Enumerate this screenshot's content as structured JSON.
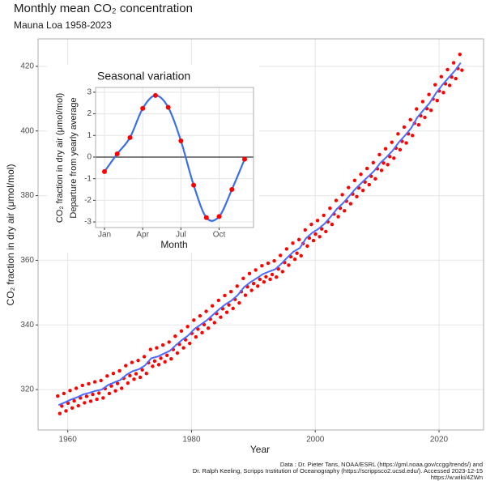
{
  "chart_data": [
    {
      "type": "scatter",
      "title": "Monthly mean CO₂ concentration",
      "subtitle": "Mauna Loa 1958-2023",
      "x_label": "Year",
      "y_label": "CO₂ fraction in dry air (μmol/mol)",
      "xlim": [
        1955.2,
        2027.2
      ],
      "ylim": [
        307.5,
        428.5
      ],
      "xticks": [
        1960,
        1980,
        2000,
        2020
      ],
      "yticks": [
        320,
        340,
        360,
        380,
        400,
        420
      ],
      "grid": true,
      "series": [
        {
          "style": "points",
          "color": "#ff0000",
          "x": [
            1958.37,
            1958.71,
            1959.04,
            1959.37,
            1959.71,
            1960.04,
            1960.37,
            1960.71,
            1961.04,
            1961.37,
            1961.71,
            1962.04,
            1962.37,
            1962.71,
            1963.04,
            1963.37,
            1963.71,
            1964.04,
            1964.37,
            1964.71,
            1965.04,
            1965.37,
            1965.71,
            1966.04,
            1966.37,
            1966.71,
            1967.04,
            1967.37,
            1967.71,
            1968.04,
            1968.37,
            1968.71,
            1969.04,
            1969.37,
            1969.71,
            1970.04,
            1970.37,
            1970.71,
            1971.04,
            1971.37,
            1971.71,
            1972.04,
            1972.37,
            1972.71,
            1973.04,
            1973.37,
            1973.71,
            1974.04,
            1974.37,
            1974.71,
            1975.04,
            1975.37,
            1975.71,
            1976.04,
            1976.37,
            1976.71,
            1977.04,
            1977.37,
            1977.71,
            1978.04,
            1978.37,
            1978.71,
            1979.04,
            1979.37,
            1979.71,
            1980.04,
            1980.37,
            1980.71,
            1981.04,
            1981.37,
            1981.71,
            1982.04,
            1982.37,
            1982.71,
            1983.04,
            1983.37,
            1983.71,
            1984.04,
            1984.37,
            1984.71,
            1985.04,
            1985.37,
            1985.71,
            1986.04,
            1986.37,
            1986.71,
            1987.04,
            1987.37,
            1987.71,
            1988.04,
            1988.37,
            1988.71,
            1989.04,
            1989.37,
            1989.71,
            1990.04,
            1990.37,
            1990.71,
            1991.04,
            1991.37,
            1991.71,
            1992.04,
            1992.37,
            1992.71,
            1993.04,
            1993.37,
            1993.71,
            1994.04,
            1994.37,
            1994.71,
            1995.04,
            1995.37,
            1995.71,
            1996.04,
            1996.37,
            1996.71,
            1997.04,
            1997.37,
            1997.71,
            1998.04,
            1998.37,
            1998.71,
            1999.04,
            1999.37,
            1999.71,
            2000.04,
            2000.37,
            2000.71,
            2001.04,
            2001.37,
            2001.71,
            2002.04,
            2002.37,
            2002.71,
            2003.04,
            2003.37,
            2003.71,
            2004.04,
            2004.37,
            2004.71,
            2005.04,
            2005.37,
            2005.71,
            2006.04,
            2006.37,
            2006.71,
            2007.04,
            2007.37,
            2007.71,
            2008.04,
            2008.37,
            2008.71,
            2009.04,
            2009.37,
            2009.71,
            2010.04,
            2010.37,
            2010.71,
            2011.04,
            2011.37,
            2011.71,
            2012.04,
            2012.37,
            2012.71,
            2013.04,
            2013.37,
            2013.71,
            2014.04,
            2014.37,
            2014.71,
            2015.04,
            2015.37,
            2015.71,
            2016.04,
            2016.37,
            2016.71,
            2017.04,
            2017.37,
            2017.71,
            2018.04,
            2018.37,
            2018.71,
            2019.04,
            2019.37,
            2019.71,
            2020.04,
            2020.37,
            2020.71,
            2021.04,
            2021.37,
            2021.71,
            2022.04,
            2022.37,
            2022.71,
            2023.04,
            2023.37,
            2023.71
          ],
          "values": [
            318.0,
            312.6,
            314.9,
            318.8,
            313.4,
            315.8,
            319.7,
            314.3,
            316.5,
            320.4,
            315.0,
            317.4,
            321.3,
            315.9,
            317.9,
            321.8,
            316.4,
            318.5,
            322.4,
            317.0,
            318.9,
            322.8,
            317.4,
            320.3,
            324.2,
            318.8,
            321.1,
            325.0,
            319.6,
            321.9,
            325.8,
            320.4,
            323.5,
            327.4,
            322.0,
            324.3,
            328.4,
            323.2,
            324.9,
            329.0,
            323.8,
            326.1,
            330.2,
            325.0,
            328.3,
            332.4,
            327.2,
            328.8,
            332.9,
            327.7,
            329.7,
            333.8,
            328.6,
            330.6,
            334.7,
            329.5,
            332.4,
            336.5,
            331.3,
            334.0,
            338.1,
            332.9,
            335.4,
            339.5,
            334.3,
            337.4,
            341.5,
            336.3,
            338.7,
            342.8,
            337.6,
            340.1,
            344.2,
            339.0,
            341.8,
            345.9,
            340.7,
            343.5,
            347.6,
            342.4,
            345.0,
            349.1,
            343.9,
            346.2,
            350.3,
            345.1,
            347.9,
            352.0,
            346.8,
            350.3,
            354.4,
            349.2,
            351.8,
            355.9,
            350.7,
            352.8,
            357.0,
            352.0,
            354.1,
            358.3,
            353.3,
            354.9,
            359.1,
            354.1,
            355.6,
            359.8,
            354.8,
            357.3,
            361.5,
            356.5,
            359.3,
            363.5,
            358.5,
            361.1,
            365.3,
            360.3,
            362.2,
            366.4,
            361.4,
            365.2,
            369.4,
            364.4,
            366.9,
            371.1,
            366.1,
            368.1,
            372.3,
            367.3,
            369.7,
            373.9,
            368.9,
            371.9,
            376.1,
            371.1,
            374.3,
            378.5,
            373.5,
            376.1,
            380.3,
            375.3,
            378.3,
            382.5,
            377.5,
            380.5,
            384.7,
            379.7,
            382.4,
            386.6,
            381.6,
            384.2,
            388.4,
            383.4,
            386.0,
            390.2,
            385.2,
            388.3,
            392.7,
            387.8,
            390.1,
            394.5,
            389.6,
            392.1,
            396.5,
            391.6,
            394.7,
            399.1,
            394.2,
            396.8,
            401.2,
            396.3,
            399.1,
            403.5,
            398.6,
            402.4,
            406.8,
            401.9,
            404.7,
            409.1,
            404.2,
            406.9,
            411.3,
            406.4,
            409.9,
            414.3,
            409.4,
            412.4,
            416.8,
            411.9,
            414.6,
            419.0,
            414.1,
            416.7,
            421.1,
            416.2,
            419.3,
            423.7,
            418.8
          ]
        },
        {
          "style": "line",
          "color": "#4d6bff",
          "x": [
            1958.5,
            1959.5,
            1960.5,
            1961.5,
            1962.5,
            1963.5,
            1964.5,
            1965.5,
            1966.5,
            1967.5,
            1968.5,
            1969.5,
            1970.5,
            1971.5,
            1972.5,
            1973.5,
            1974.5,
            1975.5,
            1976.5,
            1977.5,
            1978.5,
            1979.5,
            1980.5,
            1981.5,
            1982.5,
            1983.5,
            1984.5,
            1985.5,
            1986.5,
            1987.5,
            1988.5,
            1989.5,
            1990.5,
            1991.5,
            1992.5,
            1993.5,
            1994.5,
            1995.5,
            1996.5,
            1997.5,
            1998.5,
            1999.5,
            2000.5,
            2001.5,
            2002.5,
            2003.5,
            2004.5,
            2005.5,
            2006.5,
            2007.5,
            2008.5,
            2009.5,
            2010.5,
            2011.5,
            2012.5,
            2013.5,
            2014.5,
            2015.5,
            2016.5,
            2017.5,
            2018.5,
            2019.5,
            2020.5,
            2021.5,
            2022.5,
            2023.5
          ],
          "values": [
            315.2,
            316.0,
            316.9,
            317.6,
            318.5,
            319.0,
            319.6,
            320.0,
            321.4,
            322.2,
            323.0,
            324.6,
            325.7,
            326.3,
            327.5,
            329.7,
            330.2,
            331.1,
            332.0,
            333.8,
            335.4,
            336.8,
            338.8,
            340.1,
            341.5,
            343.2,
            344.9,
            346.4,
            347.6,
            349.3,
            351.7,
            353.2,
            354.4,
            355.7,
            356.5,
            357.2,
            358.9,
            360.9,
            362.7,
            363.8,
            366.8,
            368.5,
            369.7,
            371.3,
            373.5,
            375.9,
            377.7,
            379.9,
            382.1,
            384.0,
            385.8,
            387.6,
            390.1,
            391.9,
            393.9,
            396.5,
            398.6,
            400.9,
            404.2,
            406.5,
            408.7,
            411.7,
            414.2,
            416.4,
            418.5,
            421.1
          ]
        }
      ]
    },
    {
      "type": "line",
      "title": "Seasonal variation",
      "x_label": "Month",
      "y_label": [
        "CO₂ fraction in dry air (μmol/mol)",
        "Departure from yearly average"
      ],
      "xlim": [
        0.3,
        12.7
      ],
      "ylim": [
        -3.26,
        3.22
      ],
      "xticks": [
        {
          "value": 1,
          "label": "Jan"
        },
        {
          "value": 4,
          "label": "Apr"
        },
        {
          "value": 7,
          "label": "Jul"
        },
        {
          "value": 10,
          "label": "Oct"
        }
      ],
      "yticks": [
        -3,
        -2,
        -1,
        0,
        1,
        2,
        3
      ],
      "grid": true,
      "hline": 0,
      "series": [
        {
          "color": "#3b6fe8",
          "marker_color": "#ff0000",
          "x": [
            1,
            2,
            3,
            4,
            5,
            6,
            7,
            8,
            9,
            10,
            11,
            12
          ],
          "values": [
            -0.67,
            0.15,
            0.9,
            2.25,
            2.85,
            2.3,
            0.75,
            -1.3,
            -2.8,
            -2.75,
            -1.5,
            -0.1
          ]
        }
      ]
    }
  ],
  "caption": [
    "Data : Dr. Pieter Tans, NOAA/ESRL (https://gml.noaa.gov/ccgg/trends/) and",
    "Dr. Ralph Keeling, Scripps Institution of Oceanography (https://scrippsco2.ucsd.edu/). Accessed  2023-12-15",
    "https://w.wiki/4ZWn"
  ]
}
